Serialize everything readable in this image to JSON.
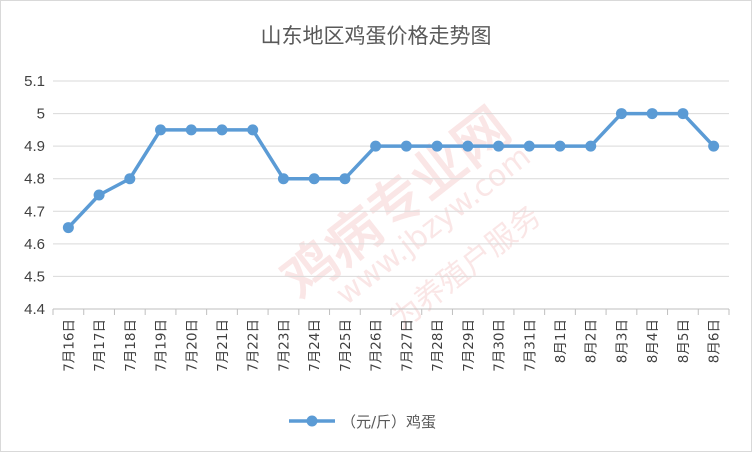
{
  "chart_data": {
    "type": "line",
    "title": "山东地区鸡蛋价格走势图",
    "categories": [
      "7月16日",
      "7月17日",
      "7月18日",
      "7月19日",
      "7月20日",
      "7月21日",
      "7月22日",
      "7月23日",
      "7月24日",
      "7月25日",
      "7月26日",
      "7月27日",
      "7月28日",
      "7月29日",
      "7月30日",
      "7月31日",
      "8月1日",
      "8月2日",
      "8月3日",
      "8月4日",
      "8月5日",
      "8月6日"
    ],
    "series": [
      {
        "name": "（元/斤）鸡蛋",
        "color": "#5b9bd5",
        "values": [
          4.65,
          4.75,
          4.8,
          4.95,
          4.95,
          4.95,
          4.95,
          4.8,
          4.8,
          4.8,
          4.9,
          4.9,
          4.9,
          4.9,
          4.9,
          4.9,
          4.9,
          4.9,
          5.0,
          5.0,
          5.0,
          4.9
        ]
      }
    ],
    "y_ticks": [
      "4.4",
      "4.5",
      "4.6",
      "4.7",
      "4.8",
      "4.9",
      "5",
      "5.1"
    ],
    "ylim": [
      4.4,
      5.1
    ],
    "xlabel": "",
    "ylabel": "",
    "grid": true,
    "legend_position": "bottom",
    "colors": {
      "gridline": "#d9d9d9",
      "axis": "#bfbfbf",
      "text": "#404040",
      "title": "#595959"
    }
  },
  "watermark": {
    "text_main": "鸡病专业网",
    "text_url": "www.jbzyw.com",
    "text_sub": "为养殖户服务"
  }
}
